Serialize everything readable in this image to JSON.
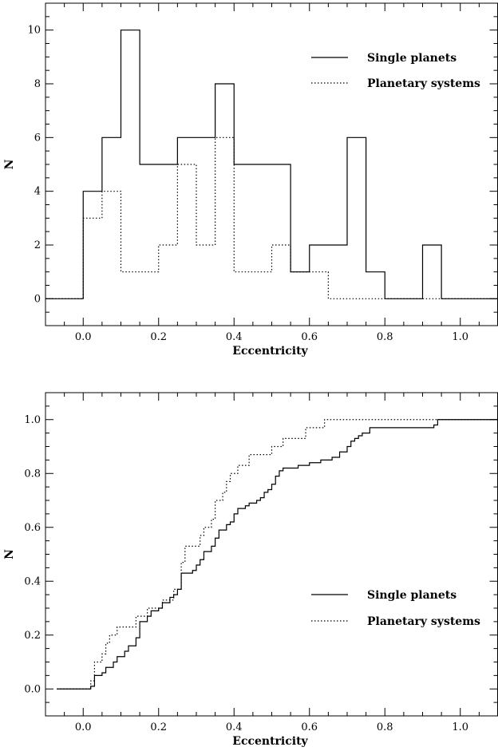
{
  "chart_data": [
    {
      "type": "histogram-step",
      "xlabel": "Eccentricity",
      "ylabel": "N",
      "xlim": [
        -0.1,
        1.1
      ],
      "ylim": [
        -1,
        11
      ],
      "x_ticks": [
        0.0,
        0.2,
        0.4,
        0.6,
        0.8,
        1.0
      ],
      "x_tick_labels": [
        "0.0",
        "0.2",
        "0.4",
        "0.6",
        "0.8",
        "1.0"
      ],
      "y_ticks": [
        0,
        2,
        4,
        6,
        8,
        10
      ],
      "y_tick_labels": [
        "0",
        "2",
        "4",
        "6",
        "8",
        "10"
      ],
      "legend_position": "top-right",
      "series": [
        {
          "name": "Single planets",
          "style": "solid",
          "steps": [
            [
              -0.1,
              0
            ],
            [
              0.0,
              4
            ],
            [
              0.05,
              6
            ],
            [
              0.1,
              10
            ],
            [
              0.15,
              5
            ],
            [
              0.25,
              6
            ],
            [
              0.35,
              8
            ],
            [
              0.4,
              5
            ],
            [
              0.55,
              1
            ],
            [
              0.6,
              2
            ],
            [
              0.7,
              6
            ],
            [
              0.75,
              1
            ],
            [
              0.8,
              0
            ],
            [
              0.9,
              2
            ],
            [
              0.95,
              0
            ],
            [
              1.1,
              0
            ]
          ]
        },
        {
          "name": "Planetary systems",
          "style": "dotted",
          "steps": [
            [
              -0.1,
              0
            ],
            [
              0.0,
              3
            ],
            [
              0.05,
              4
            ],
            [
              0.1,
              1
            ],
            [
              0.2,
              2
            ],
            [
              0.25,
              5
            ],
            [
              0.3,
              2
            ],
            [
              0.35,
              6
            ],
            [
              0.4,
              1
            ],
            [
              0.5,
              2
            ],
            [
              0.55,
              1
            ],
            [
              0.65,
              0
            ],
            [
              1.1,
              0
            ]
          ]
        }
      ]
    },
    {
      "type": "cumulative-step",
      "xlabel": "Eccentricity",
      "ylabel": "N",
      "xlim": [
        -0.1,
        1.1
      ],
      "ylim": [
        -0.1,
        1.1
      ],
      "x_ticks": [
        0.0,
        0.2,
        0.4,
        0.6,
        0.8,
        1.0
      ],
      "x_tick_labels": [
        "0.0",
        "0.2",
        "0.4",
        "0.6",
        "0.8",
        "1.0"
      ],
      "y_ticks": [
        0.0,
        0.2,
        0.4,
        0.6,
        0.8,
        1.0
      ],
      "y_tick_labels": [
        "0.0",
        "0.2",
        "0.4",
        "0.6",
        "0.8",
        "1.0"
      ],
      "legend_position": "middle-right",
      "series": [
        {
          "name": "Single planets",
          "style": "solid",
          "steps": [
            [
              -0.07,
              0.0
            ],
            [
              0.02,
              0.01
            ],
            [
              0.03,
              0.05
            ],
            [
              0.05,
              0.06
            ],
            [
              0.06,
              0.08
            ],
            [
              0.08,
              0.1
            ],
            [
              0.09,
              0.12
            ],
            [
              0.11,
              0.14
            ],
            [
              0.12,
              0.16
            ],
            [
              0.14,
              0.19
            ],
            [
              0.15,
              0.25
            ],
            [
              0.17,
              0.27
            ],
            [
              0.18,
              0.29
            ],
            [
              0.2,
              0.3
            ],
            [
              0.21,
              0.32
            ],
            [
              0.23,
              0.34
            ],
            [
              0.24,
              0.35
            ],
            [
              0.25,
              0.37
            ],
            [
              0.26,
              0.43
            ],
            [
              0.29,
              0.44
            ],
            [
              0.3,
              0.46
            ],
            [
              0.31,
              0.48
            ],
            [
              0.32,
              0.51
            ],
            [
              0.34,
              0.53
            ],
            [
              0.35,
              0.56
            ],
            [
              0.36,
              0.59
            ],
            [
              0.38,
              0.61
            ],
            [
              0.39,
              0.62
            ],
            [
              0.4,
              0.65
            ],
            [
              0.41,
              0.67
            ],
            [
              0.43,
              0.68
            ],
            [
              0.44,
              0.69
            ],
            [
              0.46,
              0.7
            ],
            [
              0.47,
              0.71
            ],
            [
              0.48,
              0.73
            ],
            [
              0.49,
              0.74
            ],
            [
              0.5,
              0.76
            ],
            [
              0.51,
              0.79
            ],
            [
              0.52,
              0.81
            ],
            [
              0.53,
              0.82
            ],
            [
              0.57,
              0.83
            ],
            [
              0.6,
              0.84
            ],
            [
              0.63,
              0.85
            ],
            [
              0.66,
              0.86
            ],
            [
              0.68,
              0.88
            ],
            [
              0.7,
              0.9
            ],
            [
              0.71,
              0.92
            ],
            [
              0.72,
              0.93
            ],
            [
              0.73,
              0.94
            ],
            [
              0.74,
              0.95
            ],
            [
              0.76,
              0.97
            ],
            [
              0.93,
              0.98
            ],
            [
              0.94,
              1.0
            ],
            [
              1.1,
              1.0
            ]
          ]
        },
        {
          "name": "Planetary systems",
          "style": "dotted",
          "steps": [
            [
              -0.07,
              0.0
            ],
            [
              0.02,
              0.03
            ],
            [
              0.03,
              0.1
            ],
            [
              0.05,
              0.13
            ],
            [
              0.06,
              0.17
            ],
            [
              0.07,
              0.2
            ],
            [
              0.09,
              0.23
            ],
            [
              0.14,
              0.27
            ],
            [
              0.17,
              0.3
            ],
            [
              0.21,
              0.33
            ],
            [
              0.24,
              0.37
            ],
            [
              0.26,
              0.47
            ],
            [
              0.27,
              0.53
            ],
            [
              0.31,
              0.57
            ],
            [
              0.32,
              0.6
            ],
            [
              0.34,
              0.63
            ],
            [
              0.35,
              0.7
            ],
            [
              0.37,
              0.73
            ],
            [
              0.38,
              0.77
            ],
            [
              0.39,
              0.8
            ],
            [
              0.41,
              0.83
            ],
            [
              0.44,
              0.87
            ],
            [
              0.5,
              0.9
            ],
            [
              0.53,
              0.93
            ],
            [
              0.59,
              0.97
            ],
            [
              0.64,
              1.0
            ],
            [
              1.1,
              1.0
            ]
          ]
        }
      ]
    }
  ]
}
